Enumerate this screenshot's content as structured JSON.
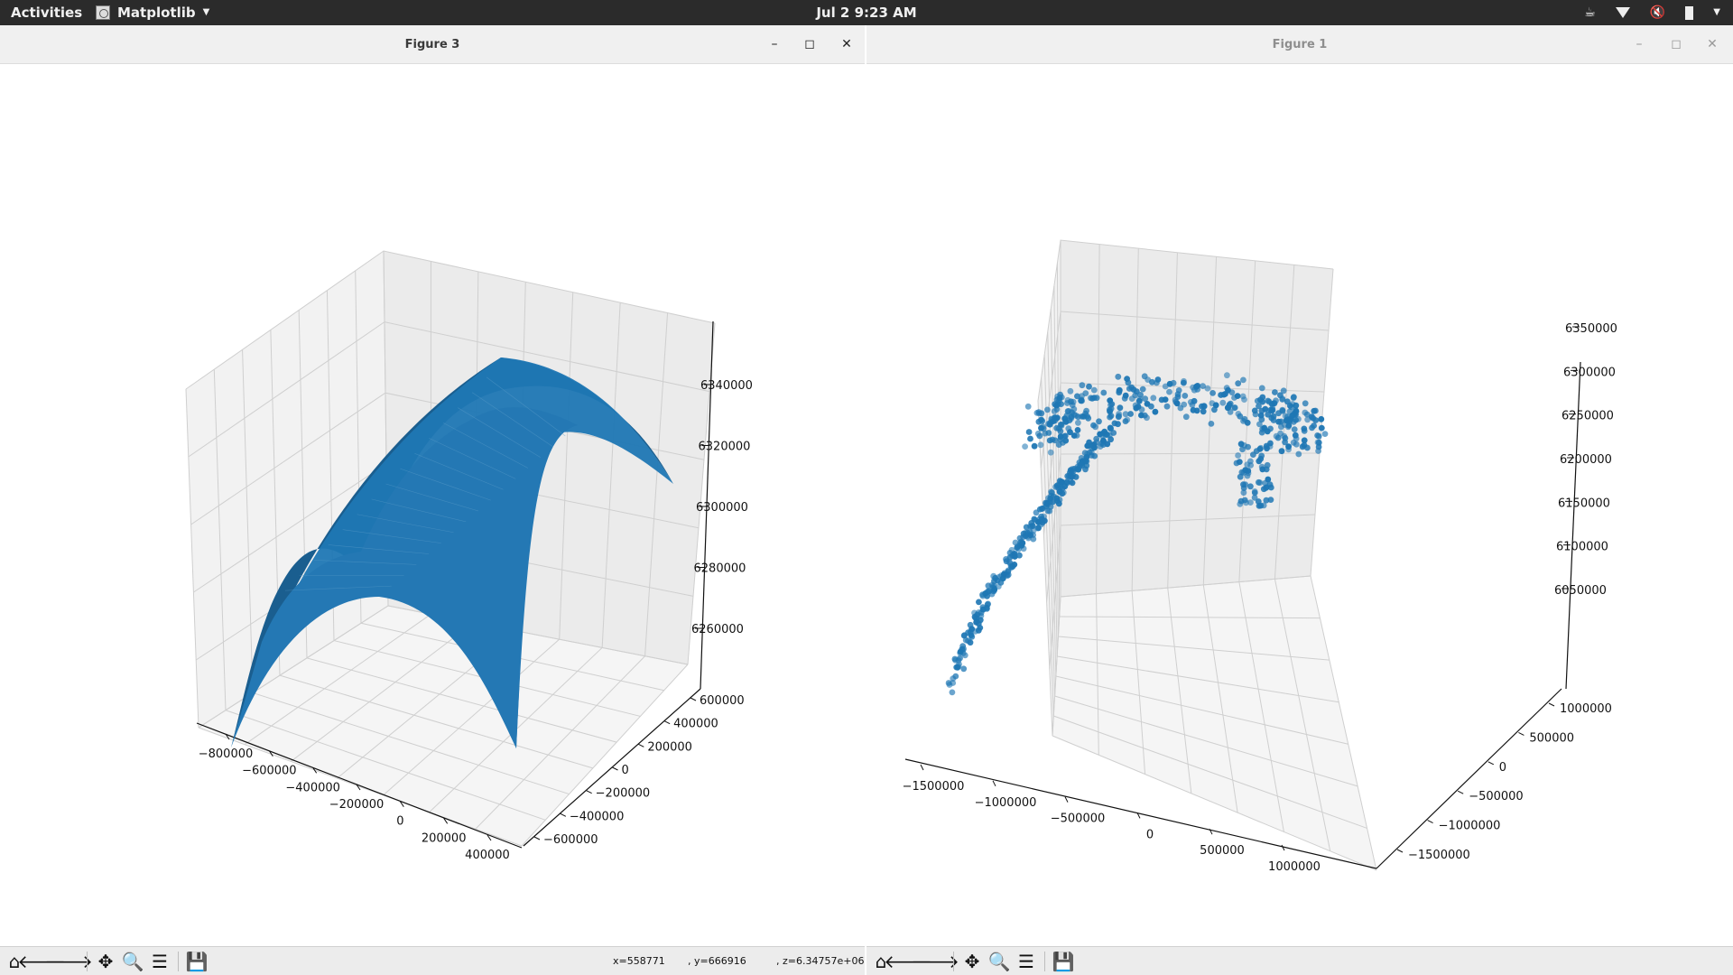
{
  "topbar": {
    "activities": "Activities",
    "app_name": "Matplotlib",
    "clock": "Jul 2  9:23 AM",
    "tray_icons": [
      "coffee-icon",
      "wifi-icon",
      "volume-muted-icon",
      "battery-icon",
      "chevron-down-icon"
    ]
  },
  "windows": [
    {
      "title": "Figure 3",
      "controls": [
        "minimize",
        "maximize",
        "close"
      ],
      "coords": {
        "x": "x=558771",
        "y": ", y=666916",
        "z": ", z=6.34757e+06"
      }
    },
    {
      "title": "Figure 1",
      "controls": [
        "minimize",
        "maximize",
        "close"
      ]
    }
  ],
  "toolbar_buttons": [
    "home-icon",
    "back-arrow-icon",
    "forward-arrow-icon",
    "pan-icon",
    "zoom-icon",
    "configure-subplots-icon",
    "save-icon"
  ],
  "chart_data": [
    {
      "type": "surface",
      "figure": "Figure 3",
      "color": "#1f77b4",
      "x_ticks": [
        "−800000",
        "−600000",
        "−400000",
        "−200000",
        "0",
        "200000",
        "400000"
      ],
      "y_ticks": [
        "600000",
        "400000",
        "200000",
        "0",
        "−200000",
        "−400000",
        "−600000"
      ],
      "z_ticks": [
        "6340000",
        "6320000",
        "6300000",
        "6280000",
        "6260000"
      ],
      "xlim": [
        -900000,
        500000
      ],
      "ylim": [
        -700000,
        700000
      ],
      "zlim": [
        6250000,
        6350000
      ],
      "grid": true
    },
    {
      "type": "scatter",
      "figure": "Figure 1",
      "color": "#1f77b4",
      "x_ticks": [
        "−1500000",
        "−1000000",
        "−500000",
        "0",
        "500000",
        "1000000"
      ],
      "y_ticks": [
        "1000000",
        "500000",
        "0",
        "−500000",
        "−1000000",
        "−1500000"
      ],
      "z_ticks": [
        "6350000",
        "6300000",
        "6250000",
        "6200000",
        "6150000",
        "6100000",
        "6050000"
      ],
      "xlim": [
        -1700000,
        1100000
      ],
      "ylim": [
        -1600000,
        1100000
      ],
      "zlim": [
        6000000,
        6370000
      ],
      "grid": true
    }
  ]
}
